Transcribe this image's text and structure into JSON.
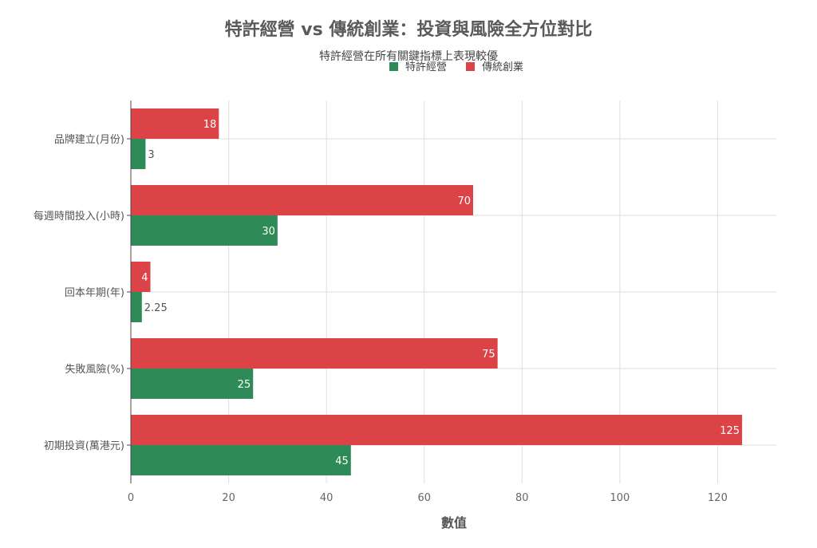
{
  "chart_data": {
    "type": "bar",
    "orientation": "horizontal",
    "title": "特許經營 vs 傳統創業：投資與風險全方位對比",
    "subtitle": "特許經營在所有關鍵指標上表現較優",
    "xlabel": "數值",
    "ylabel": "",
    "xlim": [
      0,
      132
    ],
    "x_ticks": [
      0,
      20,
      40,
      60,
      80,
      100,
      120
    ],
    "grid": true,
    "legend_position": "top-center",
    "categories": [
      "品牌建立(月份)",
      "每週時間投入(小時)",
      "回本年期(年)",
      "失敗風險(%)",
      "初期投資(萬港元)"
    ],
    "series": [
      {
        "name": "特許經營",
        "color": "#2e8b57",
        "values": [
          3,
          30,
          2.25,
          25,
          45
        ],
        "labels": [
          "3",
          "30",
          "2.25",
          "25",
          "45"
        ]
      },
      {
        "name": "傳統創業",
        "color": "#dc4346",
        "values": [
          18,
          70,
          4,
          75,
          125
        ],
        "labels": [
          "18",
          "70",
          "4",
          "75",
          "125"
        ]
      }
    ]
  }
}
